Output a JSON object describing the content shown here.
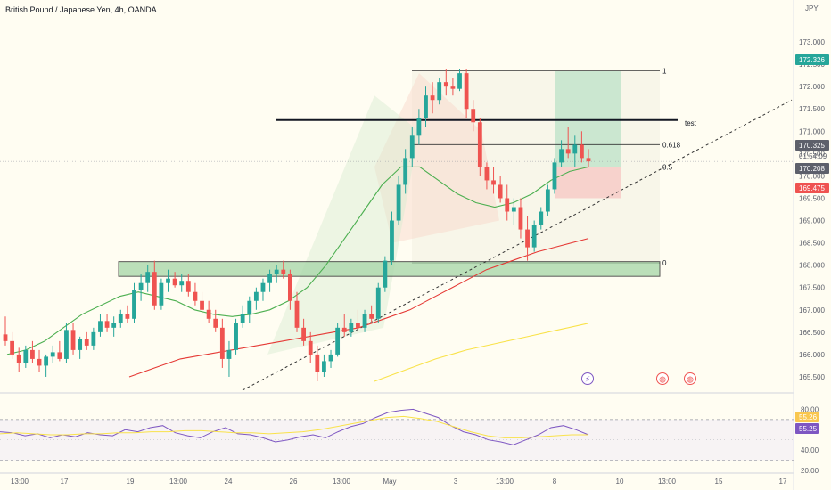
{
  "header": {
    "title": "British Pound / Japanese Yen, 4h, OANDA"
  },
  "axis": {
    "currency": "JPY"
  },
  "colors": {
    "up": "#26a69a",
    "down": "#ef5350",
    "bg": "#fffdf2"
  },
  "chart_data": [
    {
      "type": "candlestick",
      "title": "British Pound / Japanese Yen, 4h, OANDA",
      "ylabel": "JPY",
      "ylim": [
        165.2,
        173.5
      ],
      "y_ticks": [
        "173.000",
        "172.500",
        "172.000",
        "171.500",
        "171.000",
        "170.500",
        "170.000",
        "169.500",
        "169.000",
        "168.500",
        "168.000",
        "167.500",
        "167.000",
        "166.500",
        "166.000",
        "165.500"
      ],
      "x_ticks": [
        "13:00",
        "17",
        "19",
        "13:00",
        "24",
        "26",
        "13:00",
        "May",
        "3",
        "13:00",
        "8",
        "10",
        "13:00",
        "15",
        "17"
      ],
      "price_labels": [
        {
          "text": "172.326",
          "value": 172.326,
          "color": "#26a69a"
        },
        {
          "text": "170.325",
          "value": 170.325,
          "color": "#5d606b"
        },
        {
          "text": "01:54:09",
          "value": 170.27,
          "color": "#5d606b"
        },
        {
          "text": "170.208",
          "value": 170.208,
          "color": "#5d606b"
        },
        {
          "text": "169.475",
          "value": 169.475,
          "color": "#ef5350"
        }
      ],
      "fib_levels": [
        {
          "label": "1",
          "value": 172.35
        },
        {
          "label": "0.618",
          "value": 170.7
        },
        {
          "label": "0.5",
          "value": 170.2
        },
        {
          "label": "0",
          "value": 168.05
        }
      ],
      "annotation": {
        "text": "test",
        "value": 171.25
      },
      "support_zone": [
        167.75,
        168.08
      ],
      "series": [
        {
          "kind": "candles",
          "ohlc": [
            [
              166.45,
              166.85,
              166.2,
              166.3
            ],
            [
              166.3,
              166.5,
              165.9,
              166.0
            ],
            [
              166.0,
              166.15,
              165.6,
              165.8
            ],
            [
              165.8,
              166.2,
              165.7,
              166.1
            ],
            [
              166.1,
              166.3,
              165.8,
              165.9
            ],
            [
              165.9,
              166.1,
              165.6,
              165.75
            ],
            [
              165.75,
              166.0,
              165.5,
              165.95
            ],
            [
              165.95,
              166.2,
              165.8,
              166.05
            ],
            [
              166.05,
              166.3,
              165.85,
              165.9
            ],
            [
              165.9,
              166.7,
              165.8,
              166.55
            ],
            [
              166.55,
              166.7,
              166.0,
              166.1
            ],
            [
              166.1,
              166.4,
              165.9,
              166.35
            ],
            [
              166.35,
              166.5,
              166.1,
              166.2
            ],
            [
              166.2,
              166.6,
              166.1,
              166.5
            ],
            [
              166.5,
              166.9,
              166.4,
              166.75
            ],
            [
              166.75,
              166.9,
              166.5,
              166.6
            ],
            [
              166.6,
              166.85,
              166.4,
              166.7
            ],
            [
              166.7,
              167.0,
              166.6,
              166.9
            ],
            [
              166.9,
              167.1,
              166.7,
              166.8
            ],
            [
              166.8,
              167.6,
              166.7,
              167.45
            ],
            [
              167.45,
              167.8,
              167.2,
              167.6
            ],
            [
              167.6,
              168.0,
              167.4,
              167.85
            ],
            [
              167.85,
              168.1,
              167.0,
              167.1
            ],
            [
              167.1,
              167.7,
              167.0,
              167.6
            ],
            [
              167.6,
              167.9,
              167.4,
              167.7
            ],
            [
              167.7,
              167.85,
              167.5,
              167.55
            ],
            [
              167.55,
              167.8,
              167.4,
              167.65
            ],
            [
              167.65,
              167.8,
              167.3,
              167.4
            ],
            [
              167.4,
              167.6,
              167.1,
              167.2
            ],
            [
              167.2,
              167.4,
              166.9,
              167.0
            ],
            [
              167.0,
              167.2,
              166.7,
              166.8
            ],
            [
              166.8,
              167.0,
              166.5,
              166.6
            ],
            [
              166.6,
              166.8,
              165.7,
              165.9
            ],
            [
              165.9,
              166.3,
              165.5,
              166.1
            ],
            [
              166.1,
              166.8,
              166.0,
              166.7
            ],
            [
              166.7,
              167.1,
              166.6,
              166.9
            ],
            [
              166.9,
              167.3,
              166.7,
              167.2
            ],
            [
              167.2,
              167.5,
              167.0,
              167.4
            ],
            [
              167.4,
              167.7,
              167.2,
              167.6
            ],
            [
              167.6,
              167.9,
              167.4,
              167.8
            ],
            [
              167.8,
              168.0,
              167.6,
              167.9
            ],
            [
              167.9,
              168.1,
              167.7,
              167.8
            ],
            [
              167.8,
              167.9,
              167.0,
              167.2
            ],
            [
              167.2,
              167.4,
              166.5,
              166.6
            ],
            [
              166.6,
              166.8,
              166.2,
              166.3
            ],
            [
              166.3,
              166.5,
              165.8,
              166.0
            ],
            [
              166.0,
              166.2,
              165.4,
              165.6
            ],
            [
              165.6,
              166.0,
              165.5,
              165.85
            ],
            [
              165.85,
              166.1,
              165.7,
              166.0
            ],
            [
              166.0,
              166.7,
              165.95,
              166.6
            ],
            [
              166.6,
              166.9,
              166.4,
              166.5
            ],
            [
              166.5,
              166.8,
              166.4,
              166.7
            ],
            [
              166.7,
              167.0,
              166.5,
              166.6
            ],
            [
              166.6,
              167.0,
              166.5,
              166.9
            ],
            [
              166.9,
              167.1,
              166.7,
              166.8
            ],
            [
              166.8,
              167.6,
              166.7,
              167.5
            ],
            [
              167.5,
              168.2,
              167.4,
              168.1
            ],
            [
              168.1,
              169.2,
              168.0,
              169.0
            ],
            [
              169.0,
              170.0,
              168.9,
              169.8
            ],
            [
              169.8,
              170.6,
              169.6,
              170.4
            ],
            [
              170.4,
              171.1,
              170.2,
              170.9
            ],
            [
              170.9,
              171.5,
              170.7,
              171.3
            ],
            [
              171.3,
              172.0,
              171.1,
              171.8
            ],
            [
              171.8,
              172.1,
              171.4,
              171.7
            ],
            [
              171.7,
              172.2,
              171.6,
              172.1
            ],
            [
              172.1,
              172.4,
              171.8,
              172.0
            ],
            [
              172.0,
              172.2,
              171.8,
              171.95
            ],
            [
              171.95,
              172.4,
              171.9,
              172.3
            ],
            [
              172.3,
              172.4,
              171.3,
              171.5
            ],
            [
              171.5,
              171.7,
              171.0,
              171.2
            ],
            [
              171.2,
              171.3,
              170.0,
              170.2
            ],
            [
              170.2,
              170.3,
              169.7,
              169.9
            ],
            [
              169.9,
              170.2,
              169.6,
              169.8
            ],
            [
              169.8,
              170.0,
              169.4,
              169.5
            ],
            [
              169.5,
              169.8,
              169.0,
              169.2
            ],
            [
              169.2,
              169.5,
              168.9,
              169.3
            ],
            [
              169.3,
              169.5,
              168.6,
              168.8
            ],
            [
              168.8,
              169.1,
              168.1,
              168.4
            ],
            [
              168.4,
              169.0,
              168.3,
              168.9
            ],
            [
              168.9,
              169.3,
              168.8,
              169.2
            ],
            [
              169.2,
              169.8,
              169.1,
              169.7
            ],
            [
              169.7,
              170.4,
              169.6,
              170.3
            ],
            [
              170.3,
              170.8,
              170.2,
              170.6
            ],
            [
              170.6,
              171.1,
              170.4,
              170.5
            ],
            [
              170.5,
              170.9,
              170.2,
              170.7
            ],
            [
              170.7,
              171.0,
              170.3,
              170.4
            ],
            [
              170.4,
              170.6,
              170.2,
              170.325
            ]
          ]
        },
        {
          "kind": "line",
          "name": "",
          "color": "#4caf50",
          "values": [
            166.0,
            166.1,
            166.3,
            166.6,
            166.9,
            167.1,
            167.3,
            167.4,
            167.3,
            167.2,
            167.0,
            166.9,
            166.85,
            166.9,
            167.0,
            167.2,
            167.5,
            168.0,
            168.6,
            169.2,
            169.8,
            170.2,
            170.2,
            169.9,
            169.6,
            169.4,
            169.3,
            169.4,
            169.6,
            169.9,
            170.1,
            170.2
          ]
        },
        {
          "kind": "line",
          "name": "",
          "color": "#e53935",
          "values": [
            165.5,
            165.7,
            165.9,
            166.0,
            166.1,
            166.2,
            166.3,
            166.4,
            166.5,
            166.6,
            166.8,
            167.0,
            167.3,
            167.6,
            167.9,
            168.1,
            168.3,
            168.45,
            168.6
          ]
        },
        {
          "kind": "line",
          "name": "",
          "color": "#f9e24a",
          "values": [
            165.4,
            165.65,
            165.9,
            166.1,
            166.25,
            166.4,
            166.55,
            166.7
          ]
        }
      ]
    },
    {
      "type": "line",
      "ylim": [
        20,
        90
      ],
      "y_ticks": [
        "80.00",
        "60.00",
        "40.00",
        "20.00"
      ],
      "levels": [
        70,
        30
      ],
      "price_labels": [
        {
          "text": "55.26",
          "color": "#f9c74f"
        },
        {
          "text": "55.25",
          "color": "#7e57c2"
        }
      ],
      "series": [
        {
          "name": "",
          "color": "#7e57c2",
          "values": [
            58,
            57,
            54,
            56,
            52,
            55,
            53,
            57,
            55,
            54,
            60,
            58,
            62,
            64,
            57,
            54,
            52,
            58,
            62,
            56,
            55,
            52,
            48,
            50,
            53,
            55,
            52,
            58,
            63,
            66,
            72,
            77,
            79,
            80,
            76,
            72,
            64,
            58,
            55,
            50,
            48,
            45,
            50,
            55,
            62,
            64,
            60,
            55
          ]
        },
        {
          "name": "",
          "color": "#f9e24a",
          "values": [
            56,
            57,
            56,
            55,
            55,
            56,
            56,
            57,
            57,
            58,
            58,
            59,
            59,
            58,
            57,
            57,
            56,
            57,
            58,
            60,
            63,
            66,
            69,
            72,
            73,
            71,
            68,
            63,
            58,
            54,
            52,
            52,
            53,
            54,
            55,
            55
          ]
        }
      ]
    }
  ]
}
